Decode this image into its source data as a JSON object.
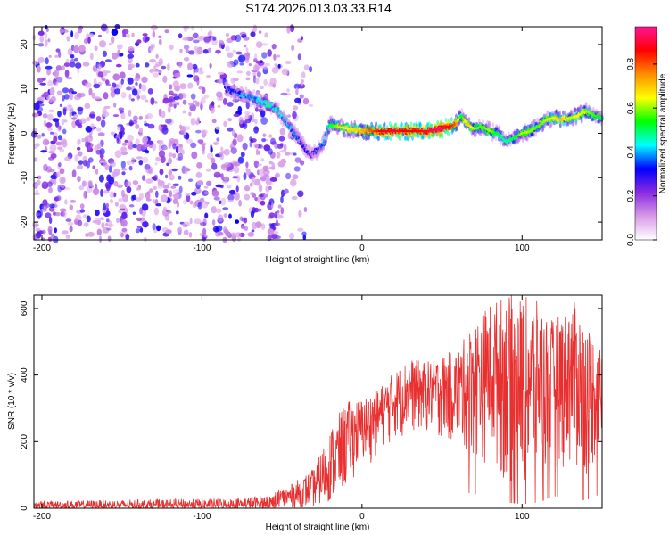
{
  "title": "S174.2026.013.03.33.R14",
  "chart_data": [
    {
      "type": "heatmap",
      "name": "spectrogram",
      "xlabel": "Height of straight line (km)",
      "ylabel": "Frequency (Hz)",
      "xlim": [
        -205,
        150
      ],
      "ylim": [
        -24,
        24
      ],
      "x_ticks": [
        -200,
        -100,
        0,
        100
      ],
      "y_ticks": [
        -20,
        -10,
        0,
        10,
        20
      ],
      "colorbar": {
        "label": "Normalized spectral amplitude",
        "range": [
          0,
          0.97
        ],
        "ticks": [
          "0.0",
          "0.2",
          "0.4",
          "0.6",
          "0.8"
        ],
        "colors": [
          "#ffffff",
          "#d89ae6",
          "#8a2be2",
          "#0000ff",
          "#00ffff",
          "#00ff00",
          "#ffff00",
          "#ff8c00",
          "#ff0000",
          "#ff1493"
        ]
      },
      "noise_region_x": [
        -205,
        -55
      ],
      "ridge": {
        "x": [
          -85,
          -78,
          -70,
          -62,
          -55,
          -48,
          -42,
          -36,
          -32,
          -28,
          -24,
          -20,
          -15,
          -8,
          0,
          10,
          20,
          30,
          40,
          50,
          58,
          62,
          66,
          70,
          75,
          80,
          85,
          90,
          95,
          100,
          105,
          110,
          115,
          120,
          125,
          130,
          135,
          140,
          145,
          150
        ],
        "y": [
          10,
          9,
          8,
          7,
          6,
          3,
          0,
          -3,
          -5,
          -4,
          -2,
          2,
          1.5,
          1,
          0.5,
          0.5,
          0.5,
          0.5,
          0.5,
          1,
          2,
          4,
          2,
          1,
          1.5,
          0.5,
          0,
          -2,
          -1,
          0,
          0.5,
          1.5,
          3,
          3.5,
          3,
          3.5,
          4,
          5,
          4,
          3.5
        ],
        "amplitude": [
          0.3,
          0.35,
          0.4,
          0.45,
          0.45,
          0.4,
          0.35,
          0.3,
          0.25,
          0.3,
          0.4,
          0.5,
          0.6,
          0.65,
          0.7,
          0.85,
          0.9,
          0.85,
          0.9,
          0.95,
          0.8,
          0.5,
          0.7,
          0.6,
          0.55,
          0.6,
          0.5,
          0.45,
          0.5,
          0.6,
          0.6,
          0.55,
          0.6,
          0.65,
          0.7,
          0.6,
          0.65,
          0.6,
          0.55,
          0.5
        ]
      }
    },
    {
      "type": "line",
      "name": "snr",
      "color": "#e83030",
      "xlabel": "Height of straight line (km)",
      "ylabel": "SNR (10 * v/v)",
      "xlim": [
        -205,
        150
      ],
      "ylim": [
        0,
        640
      ],
      "x_ticks": [
        -200,
        -100,
        0,
        100
      ],
      "y_ticks": [
        0,
        200,
        400,
        600
      ],
      "envelope": {
        "x": [
          -205,
          -80,
          -60,
          -45,
          -30,
          -20,
          -10,
          0,
          10,
          20,
          30,
          40,
          50,
          60,
          70,
          80,
          90,
          100,
          110,
          120,
          130,
          140,
          150
        ],
        "lower": [
          0,
          0,
          0,
          0,
          5,
          20,
          60,
          120,
          150,
          200,
          220,
          220,
          200,
          180,
          140,
          120,
          60,
          40,
          60,
          120,
          100,
          80,
          150
        ],
        "upper": [
          22,
          30,
          40,
          70,
          120,
          240,
          320,
          330,
          360,
          410,
          450,
          440,
          460,
          480,
          560,
          620,
          640,
          640,
          620,
          560,
          640,
          560,
          480
        ]
      }
    }
  ]
}
